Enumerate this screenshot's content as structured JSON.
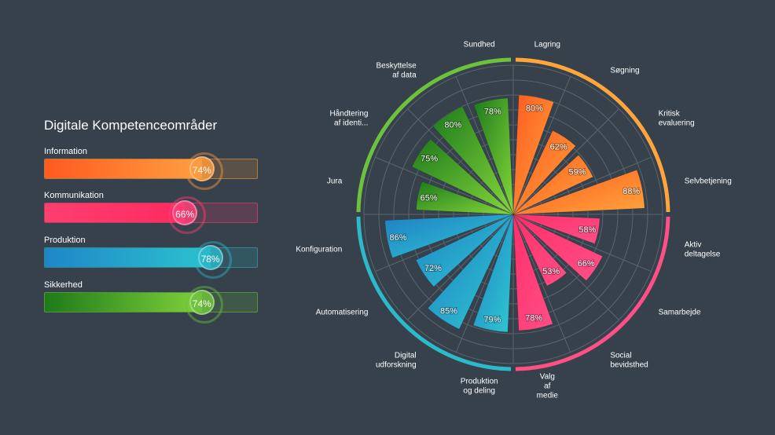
{
  "title": "Digitale Kompetenceområder",
  "background": "#36414b",
  "areas": [
    {
      "name": "Information",
      "value": 74,
      "label": "74%",
      "color_start": "#ff5a1f",
      "color_end": "#ffa040",
      "ring": "#ff9a3c"
    },
    {
      "name": "Kommunikation",
      "value": 66,
      "label": "66%",
      "color_start": "#ff3f6e",
      "color_end": "#ff2a5f",
      "ring": "#ff3f78"
    },
    {
      "name": "Produktion",
      "value": 78,
      "label": "78%",
      "color_start": "#1f86c6",
      "color_end": "#2cc3cf",
      "ring": "#29b6c8"
    },
    {
      "name": "Sikkerhed",
      "value": 74,
      "label": "74%",
      "color_start": "#1e7a1a",
      "color_end": "#7fd23a",
      "ring": "#6cc23c"
    }
  ],
  "chart_data": {
    "type": "polar-bar",
    "title": "Digitale Kompetenceområder",
    "rlim": [
      0,
      100
    ],
    "grid_step": 10,
    "categories": [
      {
        "name": "Lagring",
        "value": 80,
        "label": "80%",
        "group": 0
      },
      {
        "name": "Søgning",
        "value": 62,
        "label": "62%",
        "group": 0
      },
      {
        "name": "Kritisk evaluering",
        "value": 59,
        "label": "59%",
        "group": 0
      },
      {
        "name": "Selvbetjening",
        "value": 88,
        "label": "88%",
        "group": 0
      },
      {
        "name": "Aktiv deltagelse",
        "value": 58,
        "label": "58%",
        "group": 1
      },
      {
        "name": "Samarbejde",
        "value": 66,
        "label": "66%",
        "group": 1
      },
      {
        "name": "Social bevidsthed",
        "value": 53,
        "label": "53%",
        "group": 1
      },
      {
        "name": "Valg af medie",
        "value": 78,
        "label": "78%",
        "group": 1
      },
      {
        "name": "Produktion og deling",
        "value": 79,
        "label": "79%",
        "group": 2
      },
      {
        "name": "Digital udforskning",
        "value": 85,
        "label": "85%",
        "group": 2
      },
      {
        "name": "Automatisering",
        "value": 72,
        "label": "72%",
        "group": 2
      },
      {
        "name": "Konfiguration",
        "value": 86,
        "label": "86%",
        "group": 2
      },
      {
        "name": "Jura",
        "value": 65,
        "label": "65%",
        "group": 3
      },
      {
        "name": "Håndtering af identi...",
        "value": 75,
        "label": "75%",
        "group": 3
      },
      {
        "name": "Beskyttelse af data",
        "value": 80,
        "label": "80%",
        "group": 3
      },
      {
        "name": "Sundhed",
        "value": 78,
        "label": "78%",
        "group": 3
      }
    ]
  }
}
